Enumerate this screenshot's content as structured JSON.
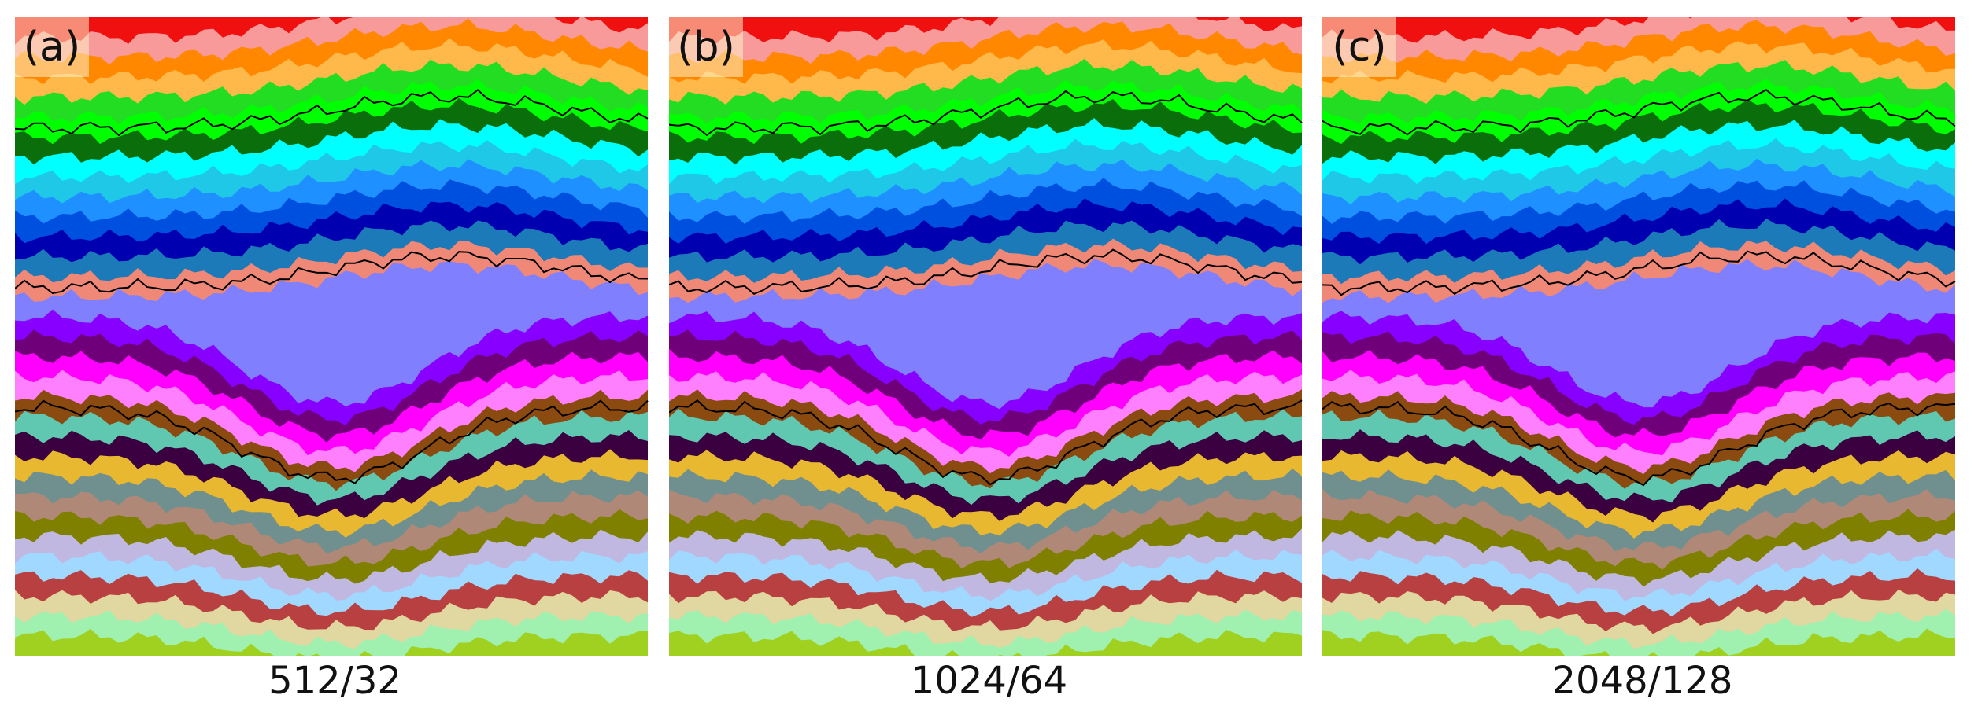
{
  "panels": [
    {
      "label": "(a)",
      "caption": "512/32"
    },
    {
      "label": "(b)",
      "caption": "1024/64"
    },
    {
      "label": "(c)",
      "caption": "2048/128"
    }
  ]
}
